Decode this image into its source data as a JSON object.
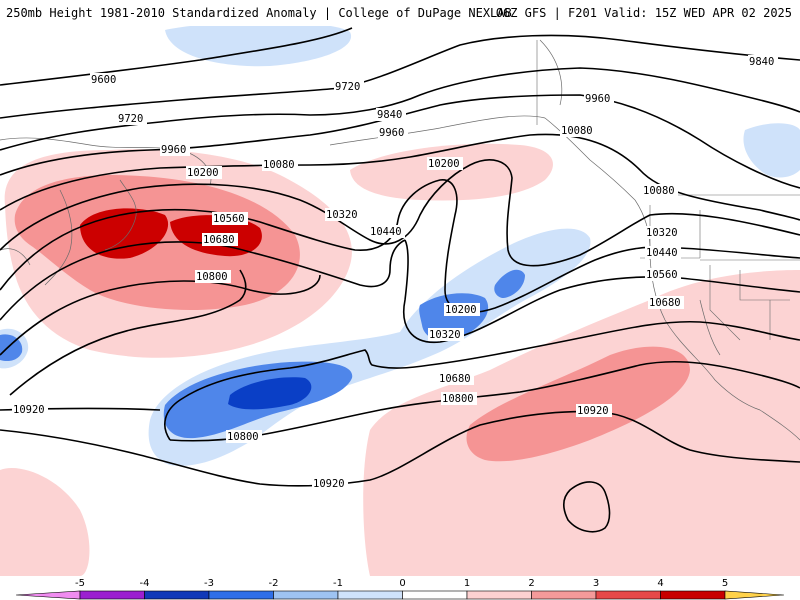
{
  "header": {
    "title_left": "250mb Height 1981-2010 Standardized Anomaly | College of DuPage NEXLAB",
    "title_right": "06Z GFS | F201 Valid: 15Z WED APR 02 2025"
  },
  "contour_labels": [
    "9600",
    "9720",
    "9720",
    "9840",
    "9840",
    "9960",
    "9960",
    "9960",
    "10080",
    "10080",
    "10080",
    "10200",
    "10200",
    "10200",
    "10320",
    "10320",
    "10320",
    "10440",
    "10440",
    "10560",
    "10560",
    "10680",
    "10680",
    "10680",
    "10800",
    "10800",
    "10800",
    "10920",
    "10920",
    "10920"
  ],
  "legend": {
    "ticks": [
      "-5",
      "-4",
      "-3",
      "-2",
      "-1",
      "0",
      "1",
      "2",
      "3",
      "4",
      "5"
    ],
    "colors": [
      "#f08cf0",
      "#9b1fd0",
      "#1039b8",
      "#2f6fe8",
      "#9ec3f2",
      "#cfe2fa",
      "#ffffff",
      "#fcd1d1",
      "#f49a9a",
      "#e64848",
      "#c80000",
      "#f2a000",
      "#ffd24a"
    ]
  },
  "anomaly_colors": {
    "pos1": "#fcd3d3",
    "pos2": "#f59494",
    "pos3": "#cc0000",
    "neg1": "#cfe2fa",
    "neg2": "#4f86ea",
    "neg3": "#0a3fc6"
  }
}
